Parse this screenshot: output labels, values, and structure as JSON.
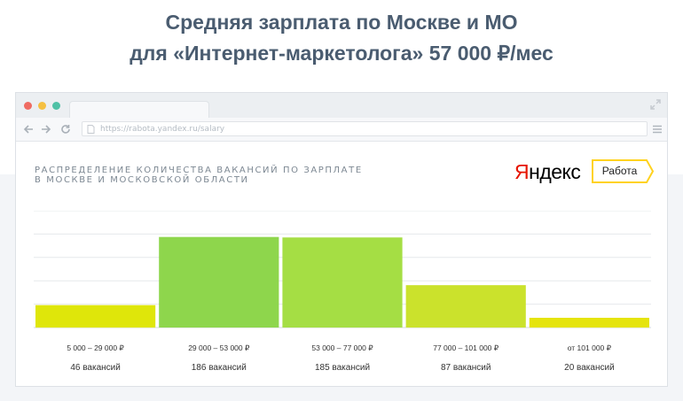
{
  "header": {
    "line1": "Средняя зарплата по Москве и МО",
    "line2": "для «Интернет-маркетолога» 57 000 ₽/мес"
  },
  "browser": {
    "url": "https://rabota.yandex.ru/salary"
  },
  "brand": {
    "logo_first": "Я",
    "logo_rest": "ндекс",
    "service": "Работа",
    "colors": {
      "logo_red": "#e61400",
      "badge_yellow": "#ffdb4d"
    }
  },
  "chart_data": {
    "type": "bar",
    "title_lines": [
      "РАСПРЕДЕЛЕНИЕ КОЛИЧЕСТВА ВАКАНСИЙ ПО ЗАРПЛАТЕ",
      "В МОСКВЕ И МОСКОВСКОЙ ОБЛАСТИ"
    ],
    "categories": [
      "5 000 – 29 000 ₽",
      "29 000 – 53 000 ₽",
      "53 000 – 77 000 ₽",
      "77 000 – 101 000 ₽",
      "от 101 000 ₽"
    ],
    "values": [
      46,
      186,
      185,
      87,
      20
    ],
    "value_labels": [
      "46 вакансий",
      "186 вакансий",
      "185 вакансий",
      "87 вакансий",
      "20 вакансий"
    ],
    "colors": [
      "#dfe60a",
      "#8ed64c",
      "#a5de44",
      "#cbe22c",
      "#e5e40c"
    ],
    "ylim": [
      0,
      240
    ],
    "grid": true
  }
}
